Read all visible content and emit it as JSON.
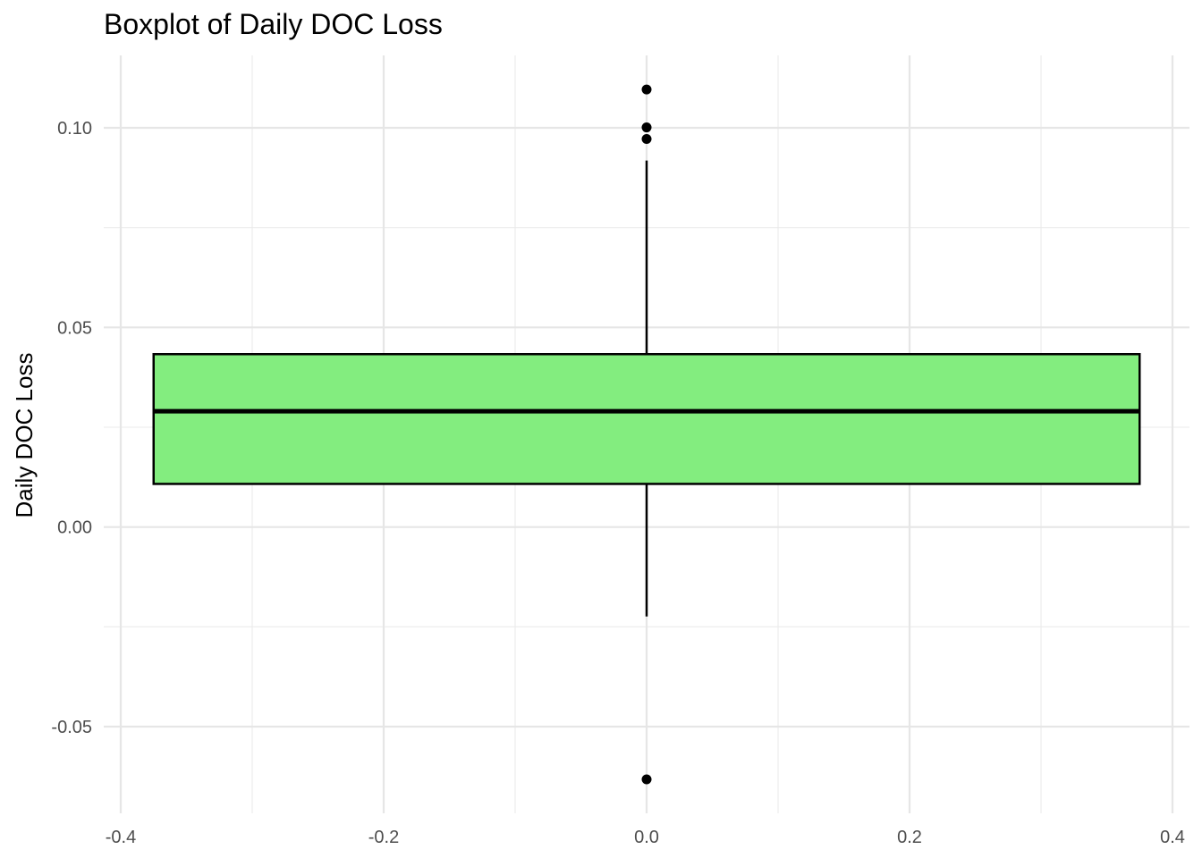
{
  "chart_data": {
    "type": "box",
    "title": "Boxplot of Daily DOC Loss",
    "xlabel": "",
    "ylabel": "Daily DOC Loss",
    "xlim": [
      -0.4,
      0.4
    ],
    "ylim": [
      -0.05,
      0.1
    ],
    "x_ticks": [
      "-0.4",
      "-0.2",
      "0.0",
      "0.2",
      "0.4"
    ],
    "y_ticks": [
      "-0.05",
      "0.00",
      "0.05",
      "0.10"
    ],
    "grid": true,
    "box": {
      "x": 0,
      "width": 0.75,
      "q1": 0.0108,
      "median": 0.029,
      "q3": 0.0433,
      "whisker_low": -0.0224,
      "whisker_high": 0.0918,
      "outliers": [
        0.1096,
        0.1001,
        0.0972,
        -0.0632
      ],
      "fill_color": "#83ED7F",
      "line_color": "#000000"
    }
  }
}
